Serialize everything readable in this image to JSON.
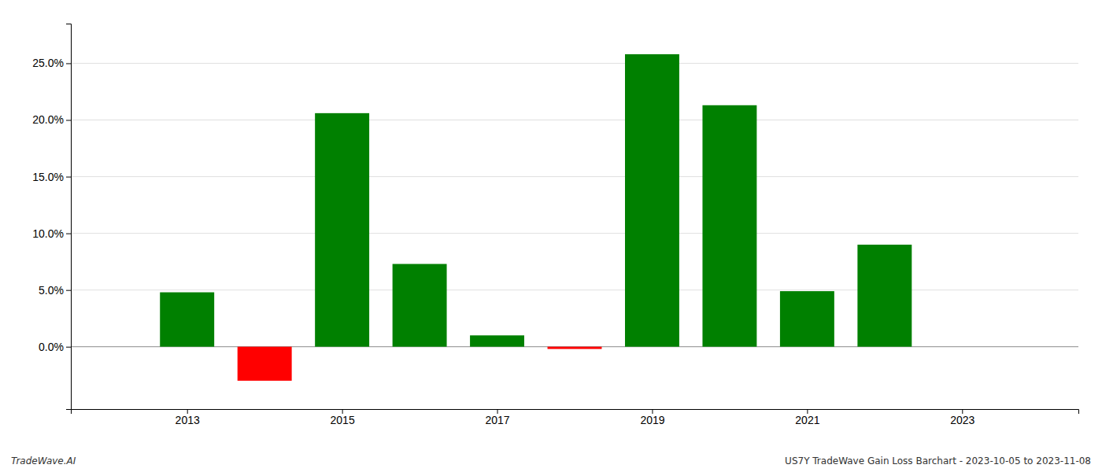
{
  "chart_data": {
    "type": "bar",
    "x": [
      2013,
      2014,
      2015,
      2016,
      2017,
      2018,
      2019,
      2020,
      2021,
      2022
    ],
    "values": [
      0.048,
      -0.03,
      0.206,
      0.073,
      0.01,
      -0.002,
      0.258,
      0.213,
      0.049,
      0.09
    ],
    "colors": [
      "#008000",
      "#ff0000",
      "#008000",
      "#008000",
      "#008000",
      "#ff0000",
      "#008000",
      "#008000",
      "#008000",
      "#008000"
    ],
    "xlim": [
      2011.5,
      2024.5
    ],
    "xticks": [
      2013,
      2015,
      2017,
      2019,
      2021,
      2023
    ],
    "ylim": [
      -0.055,
      0.285
    ],
    "yticks": [
      {
        "value": 0.0,
        "label": "0.0%"
      },
      {
        "value": 0.05,
        "label": "5.0%"
      },
      {
        "value": 0.1,
        "label": "10.0%"
      },
      {
        "value": 0.15,
        "label": "15.0%"
      },
      {
        "value": 0.2,
        "label": "20.0%"
      },
      {
        "value": 0.25,
        "label": "25.0%"
      }
    ],
    "grid": true,
    "annotations": [
      "TradeWave.AI",
      "US7Y TradeWave Gain Loss Barchart - 2023-10-05 to 2023-11-08"
    ]
  }
}
